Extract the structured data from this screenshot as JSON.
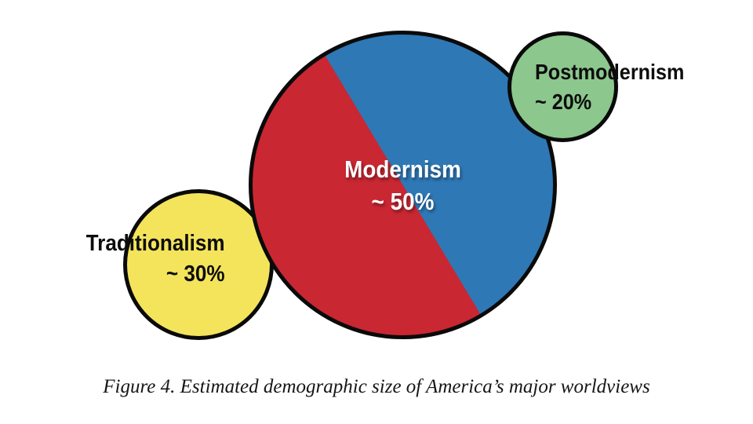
{
  "chart_data": {
    "type": "bubble",
    "title": "",
    "caption": "Figure 4. Estimated demographic size of America’s major worldviews",
    "background": "#ffffff",
    "outline_color": "#0a0a0a",
    "legend_position": "labels-on-bubbles",
    "bubbles": [
      {
        "label": "Modernism",
        "value_label": "~ 50%",
        "value_pct": 50,
        "fill": [
          "#c92732",
          "#2e78b5"
        ],
        "fill_style": "circle split diagonally: red lower-left half, blue upper-right half",
        "text_color": "#ffffff"
      },
      {
        "label": "Traditionalism",
        "value_label": "~ 30%",
        "value_pct": 30,
        "fill": [
          "#f3e45b"
        ],
        "fill_style": "solid yellow",
        "text_color": "#0d0d0d"
      },
      {
        "label": "Postmodernism",
        "value_label": "~ 20%",
        "value_pct": 20,
        "fill": [
          "#8cc78d"
        ],
        "fill_style": "solid green",
        "text_color": "#0d0d0d"
      }
    ]
  }
}
